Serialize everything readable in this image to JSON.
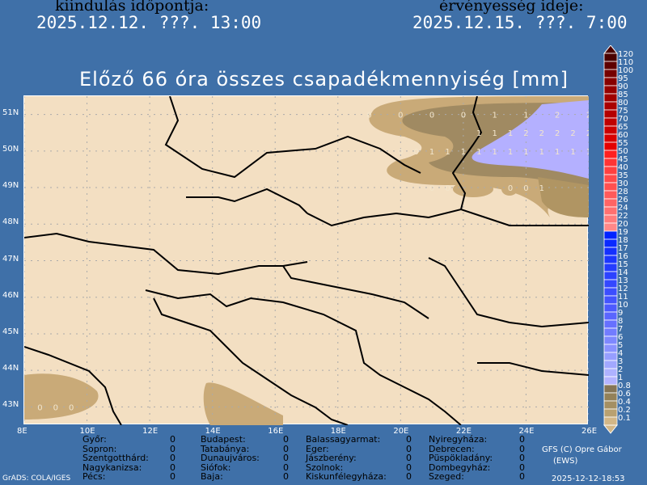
{
  "header": {
    "init_label": "kiindulás időpontja:",
    "init_value": "2025.12.12. ???. 13:00",
    "valid_label": "érvényesség ideje:",
    "valid_value": "2025.12.15. ???. 7:00"
  },
  "title": "Előző 66 óra összes csapadékmennyiség [mm]",
  "map": {
    "lon_range": [
      8,
      26
    ],
    "lat_range": [
      42.5,
      51.5
    ],
    "lon_ticks": [
      "8E",
      "10E",
      "12E",
      "14E",
      "16E",
      "18E",
      "20E",
      "22E",
      "24E",
      "26E"
    ],
    "lat_ticks": [
      "51N",
      "50N",
      "49N",
      "48N",
      "47N",
      "46N",
      "45N",
      "44N",
      "43N"
    ],
    "grid": true,
    "land_color": "#f3dfc2",
    "grid_values": [
      {
        "lat": 51.0,
        "lons": [
          19,
          20,
          21,
          22,
          23,
          24,
          25,
          26
        ],
        "vals": [
          "0",
          "0",
          "0",
          "0",
          "1",
          "1",
          "2",
          "2"
        ]
      },
      {
        "lat": 50.5,
        "lons": [
          22.5,
          23,
          23.5,
          24,
          24.5,
          25,
          25.5,
          26
        ],
        "vals": [
          "1",
          "1",
          "1",
          "2",
          "2",
          "2",
          "2",
          "2"
        ]
      },
      {
        "lat": 50.0,
        "lons": [
          20,
          20.5,
          21,
          21.5,
          22,
          22.5,
          23,
          23.5,
          24,
          24.5,
          25,
          25.5,
          26
        ],
        "vals": [
          "0",
          "0",
          "1",
          "1",
          "1",
          "1",
          "1",
          "1",
          "1",
          "1",
          "1",
          "1",
          "1"
        ]
      },
      {
        "lat": 49.0,
        "lons": [
          21,
          21.5,
          23.5,
          24,
          24.5
        ],
        "vals": [
          "0",
          "0",
          "0",
          "0",
          "1"
        ]
      },
      {
        "lat": 43.0,
        "lons": [
          8.5,
          9,
          9.5
        ],
        "vals": [
          "0",
          "0",
          "0"
        ]
      }
    ]
  },
  "colorbar": {
    "labels": [
      "120",
      "110",
      "100",
      "95",
      "90",
      "85",
      "80",
      "75",
      "70",
      "65",
      "60",
      "55",
      "50",
      "45",
      "40",
      "35",
      "30",
      "28",
      "26",
      "24",
      "22",
      "20",
      "19",
      "18",
      "17",
      "16",
      "15",
      "14",
      "13",
      "12",
      "11",
      "10",
      "9",
      "8",
      "7",
      "6",
      "5",
      "4",
      "3",
      "2",
      "1",
      "0.8",
      "0.6",
      "0.4",
      "0.2",
      "0.1"
    ],
    "colors": [
      "#4a0000",
      "#5e0000",
      "#760000",
      "#880000",
      "#960000",
      "#a00000",
      "#aa0000",
      "#b40000",
      "#c00000",
      "#cc0000",
      "#d80000",
      "#e40000",
      "#ff2020",
      "#ff3434",
      "#ff4040",
      "#ff4a4a",
      "#ff5050",
      "#ff5a5a",
      "#ff6464",
      "#ff7070",
      "#ff7c7c",
      "#ff8888",
      "#0022ff",
      "#0a2aff",
      "#1430ff",
      "#1c36ff",
      "#243cff",
      "#2c42ff",
      "#3448ff",
      "#3c4eff",
      "#4454ff",
      "#4c5aff",
      "#5a66ff",
      "#6670ff",
      "#727cff",
      "#7e88ff",
      "#8a92ff",
      "#969eff",
      "#a2a8ff",
      "#aeb2ff",
      "#b4b4ff",
      "#857556",
      "#938159",
      "#a48f63",
      "#b9a170",
      "#d3b787"
    ]
  },
  "stations": [
    [
      {
        "name": "Győr:",
        "val": "0"
      },
      {
        "name": "Sopron:",
        "val": "0"
      },
      {
        "name": "Szentgotthárd:",
        "val": "0"
      },
      {
        "name": "Nagykanizsa:",
        "val": "0"
      },
      {
        "name": "Pécs:",
        "val": "0"
      }
    ],
    [
      {
        "name": "Budapest:",
        "val": "0"
      },
      {
        "name": "Tatabánya:",
        "val": "0"
      },
      {
        "name": "Dunaujváros:",
        "val": "0"
      },
      {
        "name": "Siófok:",
        "val": "0"
      },
      {
        "name": "Baja:",
        "val": "0"
      }
    ],
    [
      {
        "name": "Balassagyarmat:",
        "val": "0"
      },
      {
        "name": "Eger:",
        "val": "0"
      },
      {
        "name": "Jászberény:",
        "val": "0"
      },
      {
        "name": "Szolnok:",
        "val": "0"
      },
      {
        "name": "Kiskunfélegyháza:",
        "val": "0"
      }
    ],
    [
      {
        "name": "Nyiregyháza:",
        "val": "0"
      },
      {
        "name": "Debrecen:",
        "val": "0"
      },
      {
        "name": "Püspökladány:",
        "val": "0"
      },
      {
        "name": "Dombegyház:",
        "val": "0"
      },
      {
        "name": "Szeged:",
        "val": "0"
      }
    ]
  ],
  "footer": {
    "credit": "GFS (C) Opre Gábor",
    "credit2": "(EWS)",
    "generated": "2025-12-12-18:53",
    "grads": "GrADS: COLA/IGES"
  }
}
